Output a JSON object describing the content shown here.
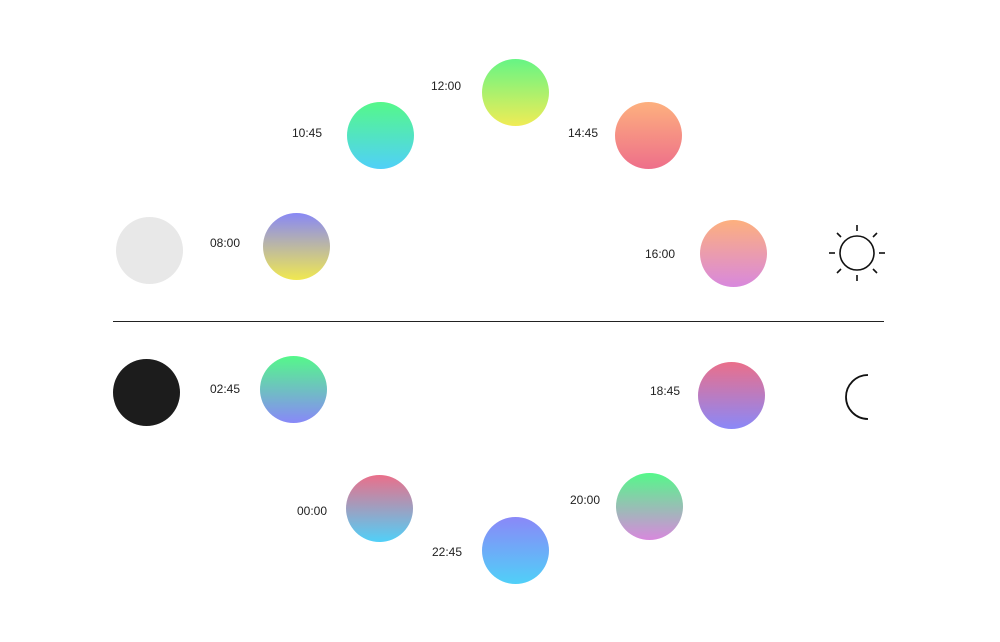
{
  "modes": {
    "day": {
      "swatch_color": "#e8e8e8",
      "icon": "sun-icon"
    },
    "night": {
      "swatch_color": "#1c1c1c",
      "icon": "moon-icon"
    }
  },
  "day_times": [
    {
      "time": "08:00",
      "top": "#8888f5",
      "bottom": "#f0e850"
    },
    {
      "time": "10:45",
      "top": "#55f88a",
      "bottom": "#50d0f8"
    },
    {
      "time": "12:00",
      "top": "#66f585",
      "bottom": "#f0ec55"
    },
    {
      "time": "14:45",
      "top": "#fdb07e",
      "bottom": "#ee6f8a"
    },
    {
      "time": "16:00",
      "top": "#fdb07e",
      "bottom": "#d888dd"
    }
  ],
  "night_times": [
    {
      "time": "02:45",
      "top": "#55f88a",
      "bottom": "#8888f8"
    },
    {
      "time": "00:00",
      "top": "#ea6f8a",
      "bottom": "#50d0f8"
    },
    {
      "time": "22:45",
      "top": "#8a88f8",
      "bottom": "#50d0f8"
    },
    {
      "time": "20:00",
      "top": "#55f88a",
      "bottom": "#d888dd"
    },
    {
      "time": "18:45",
      "top": "#ea6f8a",
      "bottom": "#8a88f8"
    }
  ]
}
